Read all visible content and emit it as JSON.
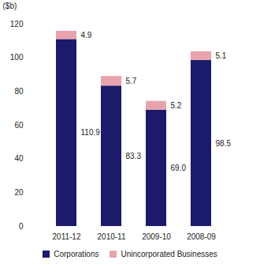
{
  "chart_data": {
    "type": "bar",
    "stacked": true,
    "data_labels": true,
    "ylabel": "($b)",
    "categories": [
      "2011-12",
      "2010-11",
      "2009-10",
      "2008-09"
    ],
    "series": [
      {
        "name": "Corporations",
        "color": "#1c1a6b",
        "values": [
          110.9,
          83.3,
          69.0,
          98.5
        ],
        "value_labels": [
          "110.9",
          "83.3",
          "69.0",
          "98.5"
        ]
      },
      {
        "name": "Unincorporated Businesses",
        "color": "#e8a3ad",
        "values": [
          4.9,
          5.7,
          5.2,
          5.1
        ]
      }
    ],
    "ylim": [
      0,
      120
    ],
    "yticks": [
      0,
      20,
      40,
      60,
      80,
      100,
      120
    ],
    "grid": false,
    "legend": "bottom"
  }
}
